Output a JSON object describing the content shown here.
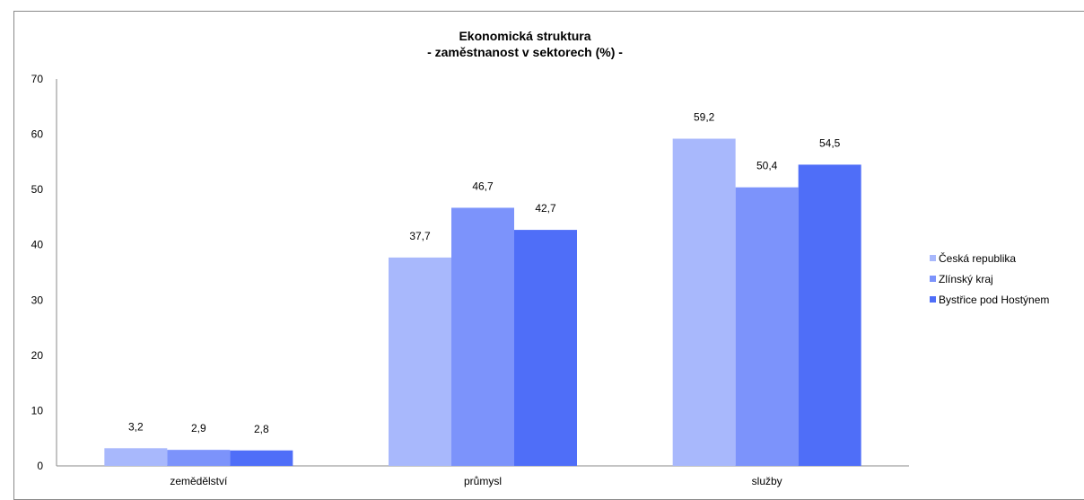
{
  "chart_data": {
    "type": "bar",
    "title": "Ekonomická struktura",
    "subtitle": "- zaměstnanost v sektorech  (%) -",
    "categories": [
      "zemědělství",
      "průmysl",
      "služby"
    ],
    "series": [
      {
        "name": "Česká republika",
        "values": [
          3.2,
          37.7,
          59.2
        ],
        "labels": [
          "3,2",
          "37,7",
          "59,2"
        ],
        "color": "#a8b8fc"
      },
      {
        "name": "Zlínský kraj",
        "values": [
          2.9,
          46.7,
          50.4
        ],
        "labels": [
          "2,9",
          "46,7",
          "50,4"
        ],
        "color": "#7c93fb"
      },
      {
        "name": "Bystřice pod Hostýnem",
        "values": [
          2.8,
          42.7,
          54.5
        ],
        "labels": [
          "2,8",
          "42,7",
          "54,5"
        ],
        "color": "#4f6ef8"
      }
    ],
    "ylim": [
      0,
      70
    ],
    "yticks": [
      "0",
      "10",
      "20",
      "30",
      "40",
      "50",
      "60",
      "70"
    ],
    "grid": false,
    "legend_position": "right"
  }
}
